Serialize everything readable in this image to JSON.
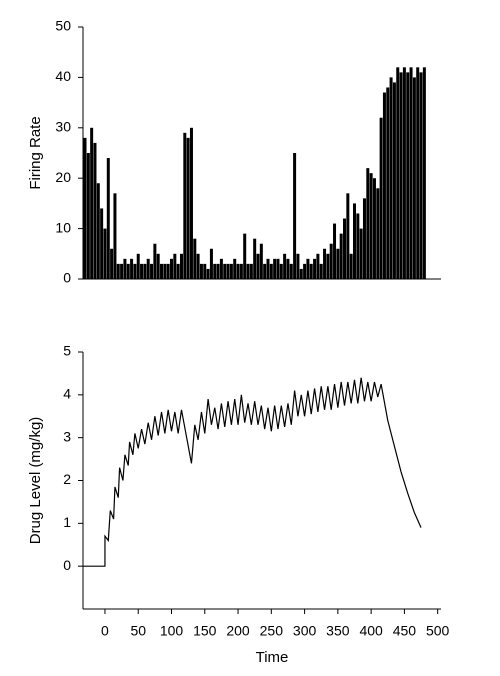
{
  "chart_data": [
    {
      "type": "bar",
      "ylabel": "Firing Rate",
      "color": "#000000",
      "xlim": [
        -33,
        505
      ],
      "ylim": [
        0,
        50
      ],
      "yticks": [
        0,
        10,
        20,
        30,
        40,
        50
      ],
      "x": [
        -30,
        -25,
        -20,
        -15,
        -10,
        -5,
        0,
        5,
        10,
        15,
        20,
        25,
        30,
        35,
        40,
        45,
        50,
        55,
        60,
        65,
        70,
        75,
        80,
        85,
        90,
        95,
        100,
        105,
        110,
        115,
        120,
        125,
        130,
        135,
        140,
        145,
        150,
        155,
        160,
        165,
        170,
        175,
        180,
        185,
        190,
        195,
        200,
        205,
        210,
        215,
        220,
        225,
        230,
        235,
        240,
        245,
        250,
        255,
        260,
        265,
        270,
        275,
        280,
        285,
        290,
        295,
        300,
        305,
        310,
        315,
        320,
        325,
        330,
        335,
        340,
        345,
        350,
        355,
        360,
        365,
        370,
        375,
        380,
        385,
        390,
        395,
        400,
        405,
        410,
        415,
        420,
        425,
        430,
        435,
        440,
        445,
        450,
        455,
        460,
        465,
        470,
        475,
        480
      ],
      "values": [
        28,
        25,
        30,
        27,
        19,
        14,
        10,
        24,
        6,
        17,
        3,
        3,
        4,
        3,
        4,
        3,
        5,
        3,
        3,
        4,
        3,
        7,
        5,
        3,
        3,
        3,
        4,
        5,
        3,
        5,
        29,
        28,
        30,
        8,
        5,
        3,
        3,
        2,
        6,
        3,
        3,
        4,
        3,
        3,
        3,
        4,
        3,
        3,
        9,
        3,
        3,
        8,
        5,
        7,
        3,
        4,
        3,
        4,
        4,
        3,
        5,
        4,
        3,
        25,
        5,
        2,
        3,
        4,
        3,
        4,
        5,
        3,
        6,
        5,
        7,
        11,
        6,
        9,
        12,
        17,
        5,
        15,
        13,
        10,
        16,
        22,
        21,
        20,
        18,
        32,
        37,
        38,
        40,
        39,
        42,
        41,
        42,
        41,
        42,
        40,
        42,
        41,
        42
      ]
    },
    {
      "type": "line",
      "ylabel": "Drug Level (mg/kg)",
      "xlabel": "Time",
      "color": "#000000",
      "xlim": [
        -33,
        505
      ],
      "xticks": [
        0,
        50,
        100,
        150,
        200,
        250,
        300,
        350,
        400,
        450,
        500
      ],
      "ylim": [
        -1,
        5
      ],
      "yticks": [
        0,
        1,
        2,
        3,
        4,
        5
      ],
      "x": [
        -33,
        0,
        0,
        5,
        8,
        13,
        15,
        20,
        22,
        27,
        30,
        35,
        37,
        42,
        45,
        50,
        55,
        60,
        65,
        70,
        75,
        80,
        85,
        90,
        95,
        100,
        105,
        110,
        115,
        130,
        135,
        140,
        145,
        150,
        155,
        160,
        165,
        170,
        175,
        180,
        185,
        190,
        195,
        200,
        205,
        210,
        215,
        220,
        225,
        230,
        235,
        240,
        245,
        250,
        255,
        260,
        265,
        270,
        275,
        280,
        285,
        290,
        295,
        300,
        305,
        310,
        315,
        320,
        325,
        330,
        335,
        340,
        345,
        350,
        355,
        360,
        365,
        370,
        375,
        380,
        385,
        390,
        395,
        400,
        405,
        410,
        415,
        425,
        435,
        445,
        455,
        465,
        475
      ],
      "values": [
        0,
        0,
        0.7,
        0.6,
        1.3,
        1.1,
        1.85,
        1.6,
        2.3,
        2.0,
        2.6,
        2.35,
        2.9,
        2.6,
        3.1,
        2.75,
        3.2,
        2.85,
        3.35,
        2.95,
        3.5,
        3.05,
        3.6,
        3.1,
        3.65,
        3.15,
        3.6,
        3.1,
        3.65,
        2.4,
        3.3,
        2.95,
        3.6,
        3.1,
        3.9,
        3.3,
        3.7,
        3.2,
        3.8,
        3.25,
        3.85,
        3.3,
        3.9,
        3.3,
        4.0,
        3.35,
        3.8,
        3.3,
        3.85,
        3.3,
        3.75,
        3.2,
        3.7,
        3.15,
        3.75,
        3.2,
        3.75,
        3.25,
        3.8,
        3.3,
        4.1,
        3.5,
        4.0,
        3.5,
        4.1,
        3.55,
        4.15,
        3.6,
        4.2,
        3.65,
        4.2,
        3.65,
        4.25,
        3.7,
        4.3,
        3.75,
        4.3,
        3.8,
        4.35,
        3.8,
        4.4,
        3.85,
        4.3,
        3.85,
        4.3,
        3.95,
        4.25,
        3.4,
        2.8,
        2.2,
        1.7,
        1.25,
        0.9
      ]
    }
  ]
}
